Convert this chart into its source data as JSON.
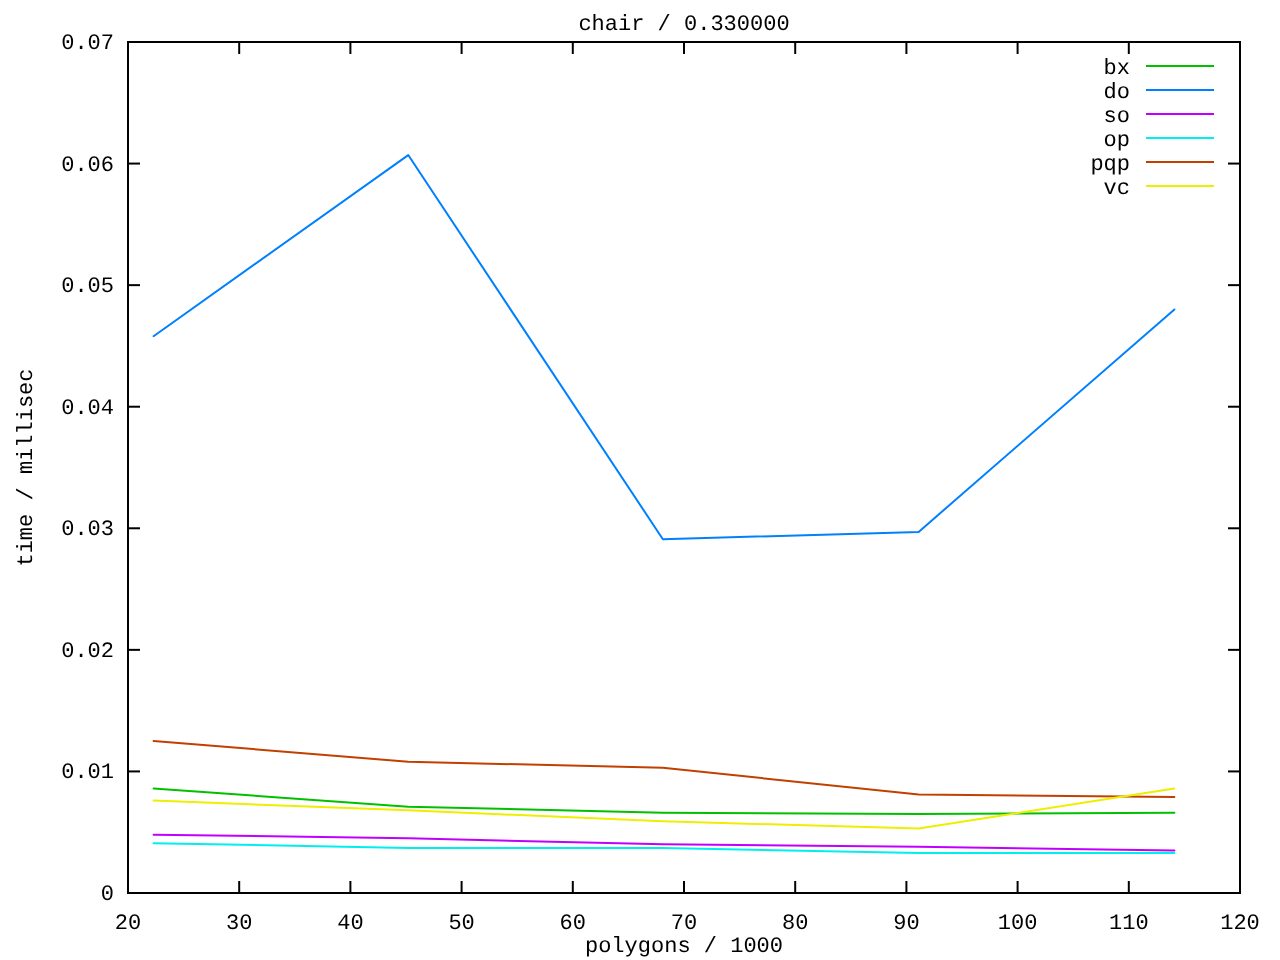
{
  "chart_data": {
    "type": "line",
    "title": "chair / 0.330000",
    "xlabel": "polygons / 1000",
    "ylabel": "time / millisec",
    "x": [
      22.3,
      45.2,
      68.1,
      91.1,
      114.1
    ],
    "series": [
      {
        "name": "bx",
        "color": "#00c000",
        "values": [
          0.0086,
          0.0071,
          0.0066,
          0.0065,
          0.0066
        ]
      },
      {
        "name": "do",
        "color": "#0080ff",
        "values": [
          0.0458,
          0.0607,
          0.0291,
          0.0297,
          0.048
        ]
      },
      {
        "name": "so",
        "color": "#c000ff",
        "values": [
          0.0048,
          0.0045,
          0.004,
          0.0038,
          0.0035
        ]
      },
      {
        "name": "op",
        "color": "#00eeee",
        "values": [
          0.0041,
          0.0037,
          0.0037,
          0.0033,
          0.0033
        ]
      },
      {
        "name": "pqp",
        "color": "#c04000",
        "values": [
          0.0125,
          0.0108,
          0.0103,
          0.0081,
          0.0079
        ]
      },
      {
        "name": "vc",
        "color": "#eeee00",
        "values": [
          0.0076,
          0.0068,
          0.0059,
          0.0053,
          0.0086
        ]
      }
    ],
    "xlim": [
      20,
      120
    ],
    "xticks": [
      20,
      30,
      40,
      50,
      60,
      70,
      80,
      90,
      100,
      110,
      120
    ],
    "ylim": [
      0,
      0.07
    ],
    "yticks": [
      0,
      0.01,
      0.02,
      0.03,
      0.04,
      0.05,
      0.06,
      0.07
    ],
    "legend": "top right"
  }
}
